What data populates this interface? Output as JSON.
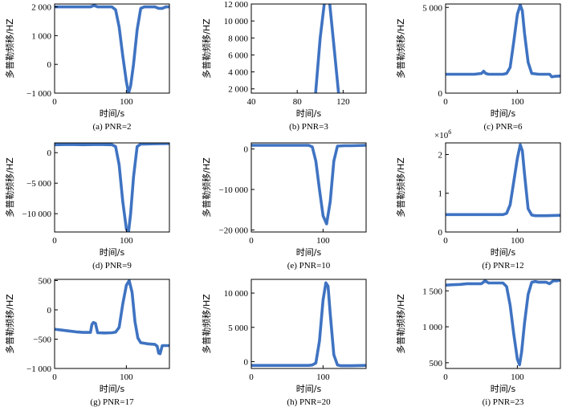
{
  "line_color": "#3f73c2",
  "chart_data": [
    {
      "type": "line",
      "caption": "(a) PNR=2",
      "xlabel": "时间/s",
      "ylabel": "多普勒频移/HZ",
      "xlim": [
        0,
        160
      ],
      "ylim": [
        -1000,
        2100
      ],
      "xticks": [
        0,
        100
      ],
      "xtick_labels": [
        "0",
        "100"
      ],
      "yticks": [
        -1000,
        0,
        1000,
        2000
      ],
      "ytick_labels": [
        "−1 000",
        "0",
        "1 000",
        "2 000"
      ],
      "series": [
        {
          "x": [
            0,
            10,
            20,
            30,
            40,
            50,
            55,
            60,
            70,
            80,
            85,
            90,
            95,
            100,
            103,
            106,
            110,
            115,
            120,
            125,
            130,
            140,
            145,
            150,
            155,
            160
          ],
          "y": [
            2000,
            2000,
            2000,
            2000,
            2000,
            2000,
            2050,
            2000,
            2000,
            2000,
            1900,
            1300,
            300,
            -600,
            -1000,
            -750,
            0,
            1200,
            1950,
            2000,
            2000,
            2000,
            1950,
            1950,
            2000,
            2000
          ]
        }
      ]
    },
    {
      "type": "line",
      "caption": "(b) PNR=3",
      "xlabel": "时间/s",
      "ylabel": "多普勒频移/HZ",
      "xlim": [
        40,
        140
      ],
      "ylim": [
        1500,
        12000
      ],
      "xticks": [
        40,
        80,
        120
      ],
      "xtick_labels": [
        "40",
        "80",
        "120"
      ],
      "yticks": [
        2000,
        4000,
        6000,
        8000,
        10000,
        12000
      ],
      "ytick_labels": [
        "2 000",
        "4 000",
        "6 000",
        "8 000",
        "10 000",
        "12 000"
      ],
      "series": [
        {
          "x": [
            96,
            100,
            104,
            108,
            112,
            116
          ],
          "y": [
            1500,
            8000,
            12500,
            12500,
            7000,
            1500
          ]
        }
      ]
    },
    {
      "type": "line",
      "caption": "(c) PNR=6",
      "xlabel": "时间/s",
      "ylabel": "多普勒频移/HZ",
      "xlim": [
        0,
        160
      ],
      "ylim": [
        0,
        5200
      ],
      "xticks": [
        0,
        100
      ],
      "xtick_labels": [
        "0",
        "100"
      ],
      "yticks": [
        0,
        5000
      ],
      "ytick_labels": [
        "0",
        "5 000"
      ],
      "series": [
        {
          "x": [
            0,
            10,
            20,
            30,
            40,
            50,
            53,
            56,
            60,
            70,
            80,
            85,
            90,
            95,
            100,
            104,
            107,
            110,
            115,
            120,
            130,
            140,
            145,
            148,
            152,
            160
          ],
          "y": [
            1100,
            1100,
            1100,
            1100,
            1100,
            1150,
            1280,
            1150,
            1100,
            1100,
            1100,
            1150,
            1500,
            3000,
            4600,
            5150,
            4800,
            3500,
            1800,
            1150,
            1100,
            1100,
            1100,
            950,
            980,
            1000
          ]
        }
      ]
    },
    {
      "type": "line",
      "caption": "(d) PNR=9",
      "xlabel": "时间/s",
      "ylabel": "多普勒频移/HZ",
      "xlim": [
        0,
        160
      ],
      "ylim": [
        -13000,
        1600
      ],
      "xticks": [
        0,
        100
      ],
      "xtick_labels": [
        "0",
        "100"
      ],
      "yticks": [
        -10000,
        -5000,
        0
      ],
      "ytick_labels": [
        "−10 000",
        "−5 000",
        "0"
      ],
      "series": [
        {
          "x": [
            0,
            20,
            40,
            60,
            80,
            85,
            90,
            95,
            100,
            103,
            106,
            110,
            115,
            120,
            125,
            140,
            160
          ],
          "y": [
            1300,
            1350,
            1300,
            1350,
            1300,
            1000,
            -2000,
            -8000,
            -12500,
            -13000,
            -10000,
            -4000,
            1000,
            1400,
            1400,
            1450,
            1500
          ]
        }
      ]
    },
    {
      "type": "line",
      "caption": "(e) PNR=10",
      "xlabel": "时间/s",
      "ylabel": "多普勒频移/HZ",
      "xlim": [
        0,
        160
      ],
      "ylim": [
        -20500,
        1500
      ],
      "xticks": [
        0,
        100
      ],
      "xtick_labels": [
        "0",
        "100"
      ],
      "yticks": [
        -20000,
        -10000,
        0
      ],
      "ytick_labels": [
        "−20 000",
        "−10 000",
        "0"
      ],
      "series": [
        {
          "x": [
            0,
            20,
            40,
            60,
            80,
            85,
            90,
            95,
            100,
            105,
            110,
            115,
            120,
            130,
            140,
            160
          ],
          "y": [
            900,
            900,
            900,
            900,
            900,
            500,
            -3000,
            -10000,
            -16500,
            -18500,
            -13000,
            -3000,
            700,
            800,
            800,
            900
          ]
        }
      ]
    },
    {
      "type": "line",
      "caption": "(f) PNR=12",
      "xlabel": "时间/s",
      "ylabel": "多普勒频移/HZ",
      "xlim": [
        0,
        160
      ],
      "ylim": [
        0,
        2300000
      ],
      "multiplier": "×10",
      "multiplier_exp": "6",
      "xticks": [
        0,
        100
      ],
      "xtick_labels": [
        "0",
        "100"
      ],
      "yticks": [
        0,
        1000000,
        2000000
      ],
      "ytick_labels": [
        "0",
        "1",
        "2"
      ],
      "series": [
        {
          "x": [
            0,
            20,
            40,
            60,
            80,
            85,
            90,
            95,
            100,
            104,
            107,
            110,
            115,
            120,
            125,
            140,
            160
          ],
          "y": [
            450000,
            450000,
            450000,
            450000,
            450000,
            480000,
            700000,
            1300000,
            1900000,
            2250000,
            2100000,
            1500000,
            600000,
            440000,
            420000,
            420000,
            430000
          ]
        }
      ]
    },
    {
      "type": "line",
      "caption": "(g) PNR=17",
      "xlabel": "时间/s",
      "ylabel": "多普勒频移/HZ",
      "xlim": [
        0,
        160
      ],
      "ylim": [
        -1000,
        520
      ],
      "xticks": [
        0,
        100
      ],
      "xtick_labels": [
        "0",
        "100"
      ],
      "yticks": [
        -1000,
        -500,
        0,
        500
      ],
      "ytick_labels": [
        "−1 000",
        "−500",
        "0",
        "500"
      ],
      "series": [
        {
          "x": [
            0,
            10,
            20,
            30,
            40,
            50,
            52,
            54,
            57,
            60,
            70,
            80,
            85,
            90,
            95,
            100,
            104,
            108,
            112,
            116,
            120,
            130,
            140,
            143,
            145,
            147,
            150,
            155,
            160
          ],
          "y": [
            -330,
            -345,
            -360,
            -375,
            -385,
            -385,
            -250,
            -215,
            -230,
            -390,
            -395,
            -390,
            -380,
            -300,
            100,
            420,
            500,
            300,
            -200,
            -480,
            -560,
            -580,
            -590,
            -620,
            -740,
            -750,
            -610,
            -610,
            -610
          ]
        }
      ]
    },
    {
      "type": "line",
      "caption": "(h) PNR=20",
      "xlabel": "时间/s",
      "ylabel": "多普勒频移/HZ",
      "xlim": [
        0,
        160
      ],
      "ylim": [
        -1000,
        12000
      ],
      "xticks": [
        0,
        100
      ],
      "xtick_labels": [
        "0",
        "100"
      ],
      "yticks": [
        0,
        5000,
        10000
      ],
      "ytick_labels": [
        "0",
        "5 000",
        "10 000"
      ],
      "series": [
        {
          "x": [
            0,
            20,
            40,
            60,
            80,
            85,
            90,
            95,
            100,
            104,
            107,
            110,
            115,
            120,
            125,
            140,
            160
          ],
          "y": [
            -550,
            -550,
            -550,
            -550,
            -550,
            -500,
            -200,
            3000,
            9000,
            11500,
            11000,
            7000,
            1000,
            -500,
            -600,
            -600,
            -550
          ]
        }
      ]
    },
    {
      "type": "line",
      "caption": "(i) PNR=23",
      "xlabel": "时间/s",
      "ylabel": "多普勒频移/HZ",
      "xlim": [
        0,
        160
      ],
      "ylim": [
        420,
        1660
      ],
      "xticks": [
        0,
        100
      ],
      "xtick_labels": [
        "0",
        "100"
      ],
      "yticks": [
        500,
        1000,
        1500
      ],
      "ytick_labels": [
        "500",
        "1 000",
        "1 500"
      ],
      "series": [
        {
          "x": [
            0,
            10,
            20,
            30,
            40,
            50,
            55,
            60,
            70,
            80,
            85,
            90,
            95,
            100,
            103,
            106,
            110,
            115,
            120,
            125,
            130,
            140,
            145,
            150,
            155,
            160
          ],
          "y": [
            1580,
            1585,
            1590,
            1600,
            1600,
            1600,
            1640,
            1610,
            1610,
            1610,
            1560,
            1300,
            900,
            550,
            470,
            650,
            1050,
            1450,
            1620,
            1630,
            1620,
            1620,
            1600,
            1640,
            1640,
            1650
          ]
        }
      ]
    }
  ]
}
